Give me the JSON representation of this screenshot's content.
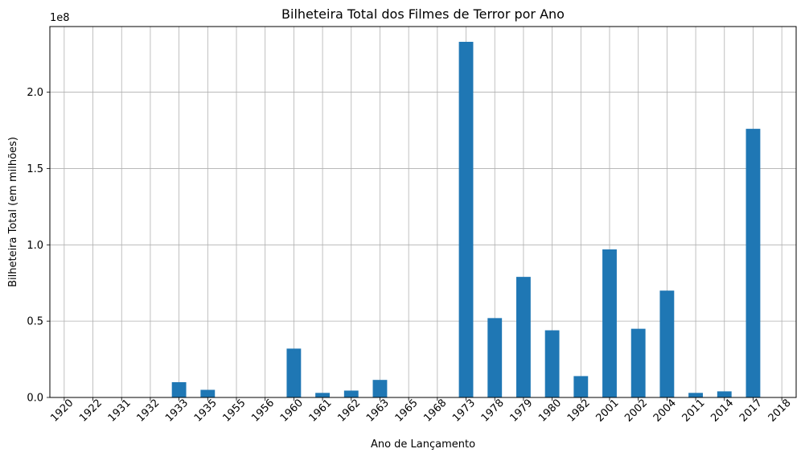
{
  "chart_data": {
    "type": "bar",
    "title": "Bilheteira Total dos Filmes de Terror por Ano",
    "xlabel": "Ano de Lançamento",
    "ylabel": "Bilheteira Total (em milhões)",
    "y_offset_label": "1e8",
    "ylim": [
      0,
      243000000
    ],
    "yticks": [
      0,
      50000000,
      100000000,
      150000000,
      200000000
    ],
    "ytick_labels": [
      "0.0",
      "0.5",
      "1.0",
      "1.5",
      "2.0"
    ],
    "grid": true,
    "color": "#1f77b4",
    "categories": [
      "1920",
      "1922",
      "1931",
      "1932",
      "1933",
      "1935",
      "1955",
      "1956",
      "1960",
      "1961",
      "1962",
      "1963",
      "1965",
      "1968",
      "1973",
      "1978",
      "1979",
      "1980",
      "1982",
      "2001",
      "2002",
      "2004",
      "2011",
      "2014",
      "2017",
      "2018"
    ],
    "values": [
      0,
      0,
      0,
      0,
      10000000,
      5000000,
      0,
      0,
      32000000,
      3000000,
      4500000,
      11500000,
      0,
      0,
      233000000,
      52000000,
      79000000,
      44000000,
      14000000,
      97000000,
      45000000,
      70000000,
      3000000,
      4000000,
      176000000,
      0
    ]
  }
}
